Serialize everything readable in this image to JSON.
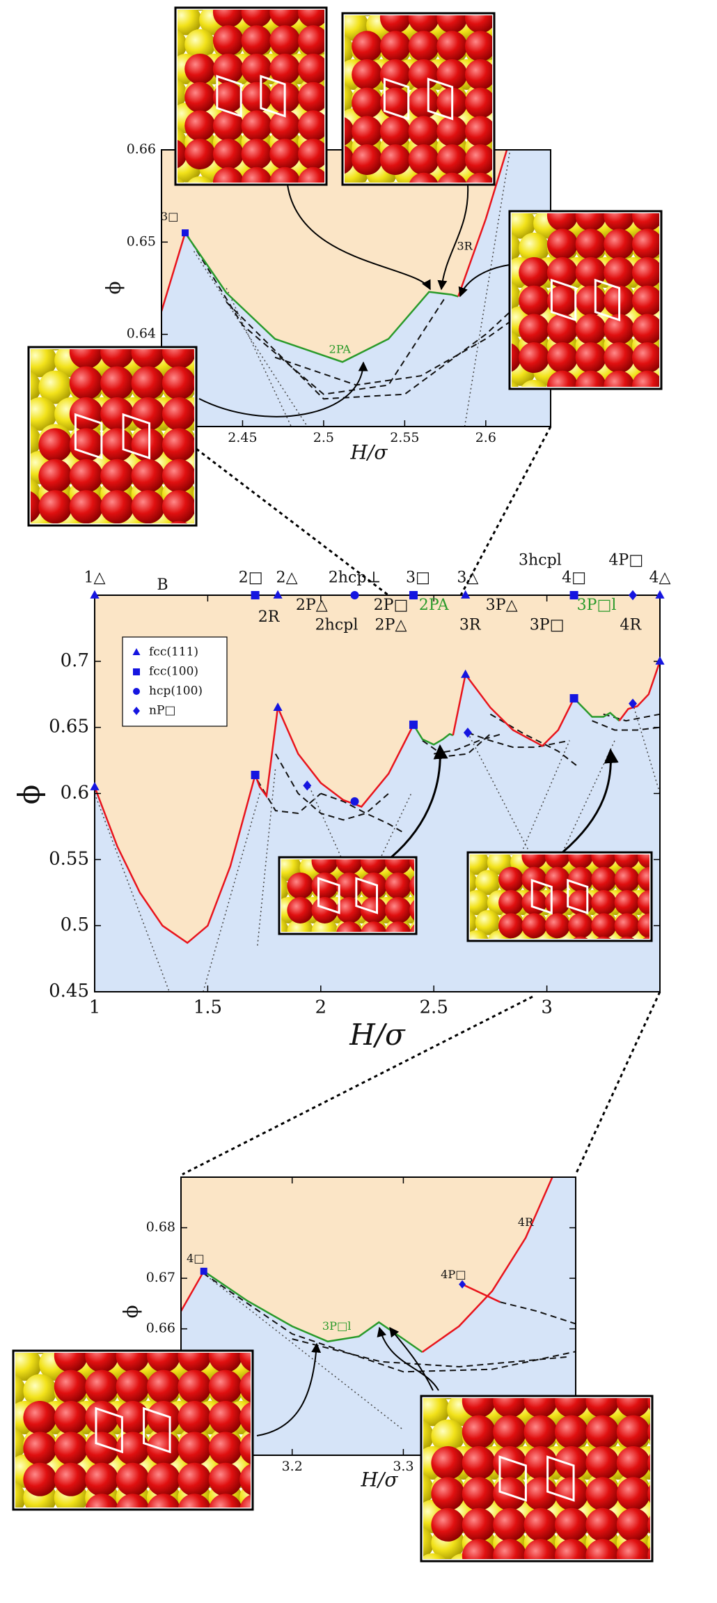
{
  "chart_data": [
    {
      "type": "line",
      "x_label": "H/σ",
      "y_label": "ϕ",
      "xlim": [
        2.4,
        2.64
      ],
      "ylim": [
        0.63,
        0.66
      ],
      "xticks": [
        2.45,
        2.5,
        2.55,
        2.6
      ],
      "yticks": [
        0.64,
        0.65,
        0.66
      ],
      "fill_above": "#fbe5c6",
      "fill_below": "#d6e4f8",
      "boundary": [
        {
          "color": "#e8141c",
          "x": [
            2.4,
            2.4146
          ],
          "values": [
            0.6425,
            0.651
          ]
        },
        {
          "color": "#2a9a2a",
          "x": [
            2.4146,
            2.44,
            2.47,
            2.5116,
            2.54,
            2.565,
            2.579,
            2.583
          ],
          "values": [
            0.651,
            0.6445,
            0.6395,
            0.637,
            0.6395,
            0.6446,
            0.6443,
            0.6441
          ]
        },
        {
          "color": "#e8141c",
          "x": [
            2.583,
            2.6,
            2.613
          ],
          "values": [
            0.6441,
            0.6525,
            0.66
          ]
        }
      ],
      "branches": [],
      "dashed": [
        {
          "x": [
            2.415,
            2.45,
            2.5,
            2.54,
            2.575
          ],
          "values": [
            0.651,
            0.641,
            0.6335,
            0.6345,
            0.644
          ]
        },
        {
          "x": [
            2.47,
            2.52,
            2.56,
            2.6,
            2.64
          ],
          "values": [
            0.6375,
            0.6345,
            0.6355,
            0.6395,
            0.6445
          ]
        },
        {
          "x": [
            2.44,
            2.5,
            2.55,
            2.6,
            2.64
          ],
          "values": [
            0.6435,
            0.633,
            0.6335,
            0.64,
            0.6465
          ]
        }
      ],
      "dotted": [
        {
          "x": [
            2.42,
            2.49
          ],
          "values": [
            0.649,
            0.63
          ]
        },
        {
          "x": [
            2.44,
            2.48
          ],
          "values": [
            0.645,
            0.63
          ]
        },
        {
          "x": [
            2.587,
            2.615
          ],
          "values": [
            0.63,
            0.66
          ]
        }
      ],
      "markers": [
        {
          "symbol": "square",
          "color": "#1515e0",
          "x": [
            2.4146
          ],
          "values": [
            0.651
          ]
        }
      ],
      "annotations": [
        {
          "text": "3□"
        },
        {
          "text": "2PA",
          "color": "#2a9a2a"
        },
        {
          "text": "3R"
        }
      ]
    },
    {
      "type": "line",
      "x_label": "H/σ",
      "y_label": "ϕ",
      "xlim": [
        1,
        3.5
      ],
      "ylim": [
        0.45,
        0.75
      ],
      "xticks": [
        1,
        1.5,
        2,
        2.5,
        3
      ],
      "yticks": [
        0.45,
        0.5,
        0.55,
        0.6,
        0.65,
        0.7
      ],
      "fill_above": "#fbe5c6",
      "fill_below": "#d6e4f8",
      "legend": true,
      "legend_loc": "upper left",
      "boundary": [
        {
          "color": "#e8141c",
          "x": [
            1,
            1.1,
            1.2,
            1.3,
            1.41,
            1.5,
            1.6,
            1.71
          ],
          "values": [
            0.605,
            0.56,
            0.525,
            0.5,
            0.487,
            0.5,
            0.545,
            0.614
          ]
        },
        {
          "color": "#e8141c",
          "x": [
            1.71,
            1.73,
            1.76,
            1.81
          ],
          "values": [
            0.614,
            0.605,
            0.598,
            0.665
          ]
        },
        {
          "color": "#e8141c",
          "x": [
            1.81,
            1.9,
            2.0,
            2.1,
            2.18,
            2.3,
            2.41
          ],
          "values": [
            0.665,
            0.63,
            0.608,
            0.595,
            0.59,
            0.615,
            0.652
          ]
        },
        {
          "color": "#2a9a2a",
          "x": [
            2.41,
            2.45,
            2.5,
            2.54,
            2.57,
            2.585
          ],
          "values": [
            0.652,
            0.641,
            0.637,
            0.641,
            0.645,
            0.644
          ]
        },
        {
          "color": "#e8141c",
          "x": [
            2.585,
            2.61,
            2.64
          ],
          "values": [
            0.644,
            0.665,
            0.69
          ]
        },
        {
          "color": "#e8141c",
          "x": [
            2.64,
            2.75,
            2.85,
            2.98,
            3.05,
            3.12
          ],
          "values": [
            0.69,
            0.665,
            0.648,
            0.636,
            0.648,
            0.672
          ]
        },
        {
          "color": "#2a9a2a",
          "x": [
            3.12,
            3.2,
            3.25,
            3.28,
            3.32
          ],
          "values": [
            0.672,
            0.658,
            0.658,
            0.661,
            0.655
          ]
        },
        {
          "color": "#e8141c",
          "x": [
            3.32,
            3.36,
            3.4,
            3.45,
            3.5
          ],
          "values": [
            0.655,
            0.664,
            0.666,
            0.675,
            0.7
          ]
        }
      ],
      "branches": [],
      "dashed": [
        {
          "x": [
            1.72,
            1.8,
            1.9,
            2.0
          ],
          "values": [
            0.61,
            0.587,
            0.585,
            0.6
          ]
        },
        {
          "x": [
            1.8,
            1.9,
            2.0,
            2.1,
            2.2,
            2.3
          ],
          "values": [
            0.63,
            0.6,
            0.585,
            0.58,
            0.585,
            0.6
          ]
        },
        {
          "x": [
            2.0,
            2.1,
            2.2,
            2.3,
            2.37
          ],
          "values": [
            0.6,
            0.594,
            0.585,
            0.577,
            0.57
          ]
        },
        {
          "x": [
            2.45,
            2.55,
            2.65,
            2.75
          ],
          "values": [
            0.64,
            0.628,
            0.63,
            0.645
          ]
        },
        {
          "x": [
            2.5,
            2.6,
            2.7,
            2.8
          ],
          "values": [
            0.63,
            0.633,
            0.64,
            0.645
          ]
        },
        {
          "x": [
            2.65,
            2.75,
            2.85,
            2.95,
            3.1
          ],
          "values": [
            0.646,
            0.64,
            0.635,
            0.635,
            0.64
          ]
        },
        {
          "x": [
            2.75,
            2.9,
            3.05,
            3.14
          ],
          "values": [
            0.66,
            0.645,
            0.632,
            0.62
          ]
        },
        {
          "x": [
            3.2,
            3.3,
            3.4,
            3.5
          ],
          "values": [
            0.655,
            0.648,
            0.648,
            0.65
          ]
        },
        {
          "x": [
            3.25,
            3.35,
            3.5
          ],
          "values": [
            0.66,
            0.655,
            0.66
          ]
        }
      ],
      "dotted": [
        {
          "x": [
            1.0,
            1.33
          ],
          "values": [
            0.6,
            0.45
          ]
        },
        {
          "x": [
            1.48,
            1.73
          ],
          "values": [
            0.45,
            0.6
          ]
        },
        {
          "x": [
            1.72,
            1.8
          ],
          "values": [
            0.485,
            0.62
          ]
        },
        {
          "x": [
            1.95,
            2.2
          ],
          "values": [
            0.605,
            0.51
          ]
        },
        {
          "x": [
            2.15,
            2.4
          ],
          "values": [
            0.51,
            0.6
          ]
        },
        {
          "x": [
            2.65,
            3.0
          ],
          "values": [
            0.646,
            0.53
          ]
        },
        {
          "x": [
            2.75,
            3.1
          ],
          "values": [
            0.5,
            0.64
          ]
        },
        {
          "x": [
            3.0,
            3.3
          ],
          "values": [
            0.53,
            0.64
          ]
        },
        {
          "x": [
            3.38,
            3.5
          ],
          "values": [
            0.668,
            0.6
          ]
        }
      ],
      "markers": [
        {
          "name": "fcc(111)",
          "symbol": "triangle",
          "color": "#1515e0",
          "x": [
            1,
            1.81,
            2.64,
            3.5,
            1,
            1.81,
            2.64,
            3.5
          ],
          "values": [
            0.605,
            0.665,
            0.69,
            0.7,
            0.75,
            0.75,
            0.75,
            0.75
          ]
        },
        {
          "name": "fcc(100)",
          "symbol": "square",
          "color": "#1515e0",
          "x": [
            1.71,
            2.41,
            3.12,
            1.71,
            2.41,
            3.12
          ],
          "values": [
            0.614,
            0.652,
            0.672,
            0.75,
            0.75,
            0.75
          ]
        },
        {
          "name": "hcp(100)",
          "symbol": "circle",
          "color": "#1515e0",
          "x": [
            2.15,
            2.15
          ],
          "values": [
            0.594,
            0.75
          ]
        },
        {
          "name": "nP□",
          "symbol": "diamond",
          "color": "#1515e0",
          "x": [
            1.94,
            2.65,
            3.38,
            3.38
          ],
          "values": [
            0.606,
            0.646,
            0.668,
            0.75
          ]
        }
      ],
      "annotations": [
        {
          "text": "1△"
        },
        {
          "text": "B"
        },
        {
          "text": "2□"
        },
        {
          "text": "2△"
        },
        {
          "text": "2hcp⊥"
        },
        {
          "text": "3□"
        },
        {
          "text": "3△"
        },
        {
          "text": "3hcpl"
        },
        {
          "text": "4□"
        },
        {
          "text": "4P□"
        },
        {
          "text": "4△"
        },
        {
          "text": "2R"
        },
        {
          "text": "2P△"
        },
        {
          "text": "2hcpl"
        },
        {
          "text": "2P□"
        },
        {
          "text": "2P△"
        },
        {
          "text": "2PA",
          "color": "#2a9a2a"
        },
        {
          "text": "3R"
        },
        {
          "text": "3P△"
        },
        {
          "text": "3P□"
        },
        {
          "text": "3P□l",
          "color": "#2a9a2a"
        },
        {
          "text": "4R"
        }
      ]
    },
    {
      "type": "line",
      "x_label": "H/σ",
      "y_label": "ϕ",
      "xlim": [
        3.1,
        3.455
      ],
      "ylim": [
        0.635,
        0.69
      ],
      "xticks": [
        3.2,
        3.3
      ],
      "yticks": [
        0.66,
        0.67,
        0.68
      ],
      "fill_above": "#fbe5c6",
      "fill_below": "#d6e4f8",
      "boundary": [
        {
          "color": "#e8141c",
          "x": [
            3.1,
            3.1205
          ],
          "values": [
            0.6635,
            0.6714
          ]
        },
        {
          "color": "#2a9a2a",
          "x": [
            3.1205,
            3.16,
            3.2,
            3.232,
            3.26,
            3.278,
            3.3,
            3.317
          ],
          "values": [
            0.6714,
            0.6655,
            0.6605,
            0.6575,
            0.6585,
            0.6613,
            0.658,
            0.6554
          ]
        },
        {
          "color": "#e8141c",
          "x": [
            3.317,
            3.35,
            3.38,
            3.41,
            3.434
          ],
          "values": [
            0.6554,
            0.6605,
            0.6675,
            0.678,
            0.69
          ]
        }
      ],
      "branches": [
        {
          "color": "#e8141c",
          "x": [
            3.353,
            3.387
          ],
          "values": [
            0.6688,
            0.6653
          ]
        }
      ],
      "dashed": [
        {
          "x": [
            3.12,
            3.2,
            3.3,
            3.38,
            3.455
          ],
          "values": [
            0.671,
            0.659,
            0.6515,
            0.652,
            0.6555
          ]
        },
        {
          "x": [
            3.387,
            3.42,
            3.455
          ],
          "values": [
            0.6653,
            0.6635,
            0.661
          ]
        },
        {
          "x": [
            3.2,
            3.28,
            3.35,
            3.45
          ],
          "values": [
            0.658,
            0.6535,
            0.6525,
            0.6545
          ]
        }
      ],
      "dotted": [
        {
          "x": [
            3.12,
            3.3
          ],
          "values": [
            0.671,
            0.64
          ]
        }
      ],
      "markers": [
        {
          "symbol": "square",
          "color": "#1515e0",
          "x": [
            3.1205
          ],
          "values": [
            0.6714
          ]
        },
        {
          "symbol": "diamond",
          "color": "#1515e0",
          "x": [
            3.353
          ],
          "values": [
            0.6688
          ]
        }
      ],
      "annotations": [
        {
          "text": "4□"
        },
        {
          "text": "3P□l",
          "color": "#2a9a2a"
        },
        {
          "text": "4P□"
        },
        {
          "text": "4R"
        }
      ]
    }
  ]
}
